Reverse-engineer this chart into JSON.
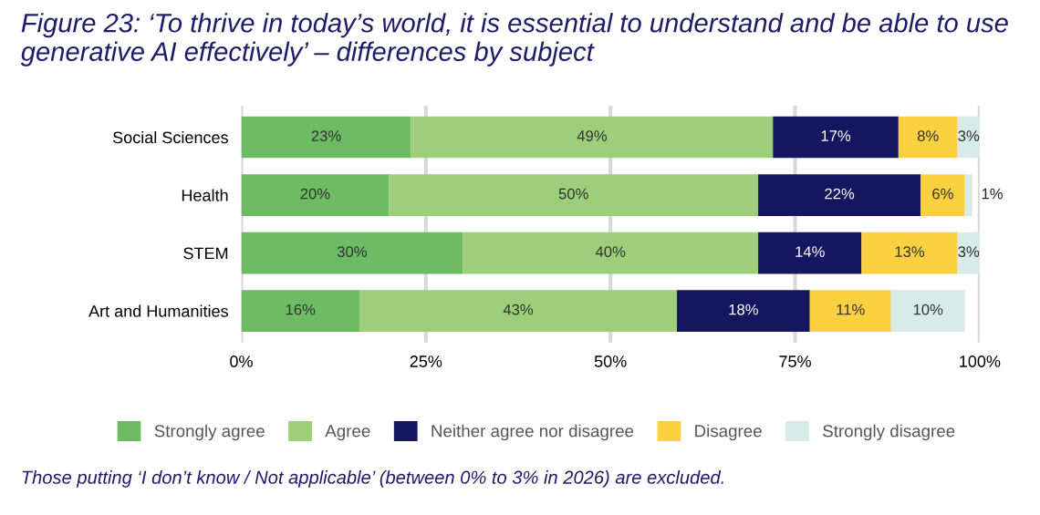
{
  "chart_data": {
    "type": "bar",
    "orientation": "horizontal",
    "stacked": true,
    "title": "Figure 23: ‘To thrive in today’s world, it is essential to understand and be able to use generative AI effectively’ – differences by subject",
    "categories": [
      "Social Sciences",
      "Health",
      "STEM",
      "Art and Humanities"
    ],
    "series": [
      {
        "name": "Strongly agree",
        "color": "#6dbb63",
        "values": [
          23,
          20,
          30,
          16
        ],
        "value_labels": [
          "23%",
          "20%",
          "30%",
          "16%"
        ]
      },
      {
        "name": "Agree",
        "color": "#9dcf7b",
        "values": [
          49,
          50,
          40,
          43
        ],
        "value_labels": [
          "49%",
          "50%",
          "40%",
          "43%"
        ]
      },
      {
        "name": "Neither agree nor disagree",
        "color": "#14165e",
        "values": [
          17,
          22,
          14,
          18
        ],
        "value_labels": [
          "17%",
          "22%",
          "14%",
          "18%"
        ]
      },
      {
        "name": "Disagree",
        "color": "#fbd13f",
        "values": [
          8,
          6,
          13,
          11
        ],
        "value_labels": [
          "8%",
          "6%",
          "13%",
          "11%"
        ]
      },
      {
        "name": "Strongly disagree",
        "color": "#d7ebe8",
        "values": [
          3,
          1,
          3,
          10
        ],
        "value_labels": [
          "3%",
          "1%",
          "3%",
          "10%"
        ]
      }
    ],
    "xlim": [
      0,
      100
    ],
    "xticks": [
      {
        "value": 0,
        "label": "0%"
      },
      {
        "value": 25,
        "label": "25%"
      },
      {
        "value": 50,
        "label": "50%"
      },
      {
        "value": 75,
        "label": "75%"
      },
      {
        "value": 100,
        "label": "100%"
      }
    ],
    "grid": "x",
    "legend": "bottom",
    "annotations": [
      "Those putting ‘I don’t know / Not applicable’ (between 0% to 3% in 2026) are excluded."
    ]
  }
}
